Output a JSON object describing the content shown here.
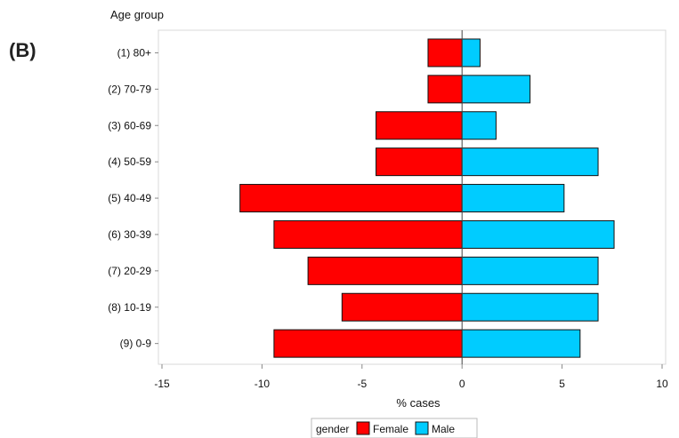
{
  "panel_label": "(B)",
  "chart_data": {
    "type": "bar",
    "orientation": "horizontal",
    "ylabel": "Age group",
    "xlabel": "% cases",
    "categories": [
      "(1) 80+",
      "(2) 70-79",
      "(3) 60-69",
      "(4) 50-59",
      "(5) 40-49",
      "(6) 30-39",
      "(7) 20-29",
      "(8) 10-19",
      "(9) 0-9"
    ],
    "series": [
      {
        "name": "Female",
        "color": "#ff0000",
        "values": [
          -1.7,
          -1.7,
          -4.3,
          -4.3,
          -11.1,
          -9.4,
          -7.7,
          -6.0,
          -9.4
        ]
      },
      {
        "name": "Male",
        "color": "#00ccff",
        "values": [
          0.9,
          3.4,
          1.7,
          6.8,
          5.1,
          7.6,
          6.8,
          6.8,
          5.9
        ]
      }
    ],
    "xlim": [
      -15,
      10
    ],
    "xticks": [
      "-15",
      "-10",
      "-5",
      "0",
      "5",
      "10"
    ],
    "grid": false,
    "legend": {
      "title": "gender",
      "position": "bottom",
      "entries": [
        "Female",
        "Male"
      ]
    }
  }
}
